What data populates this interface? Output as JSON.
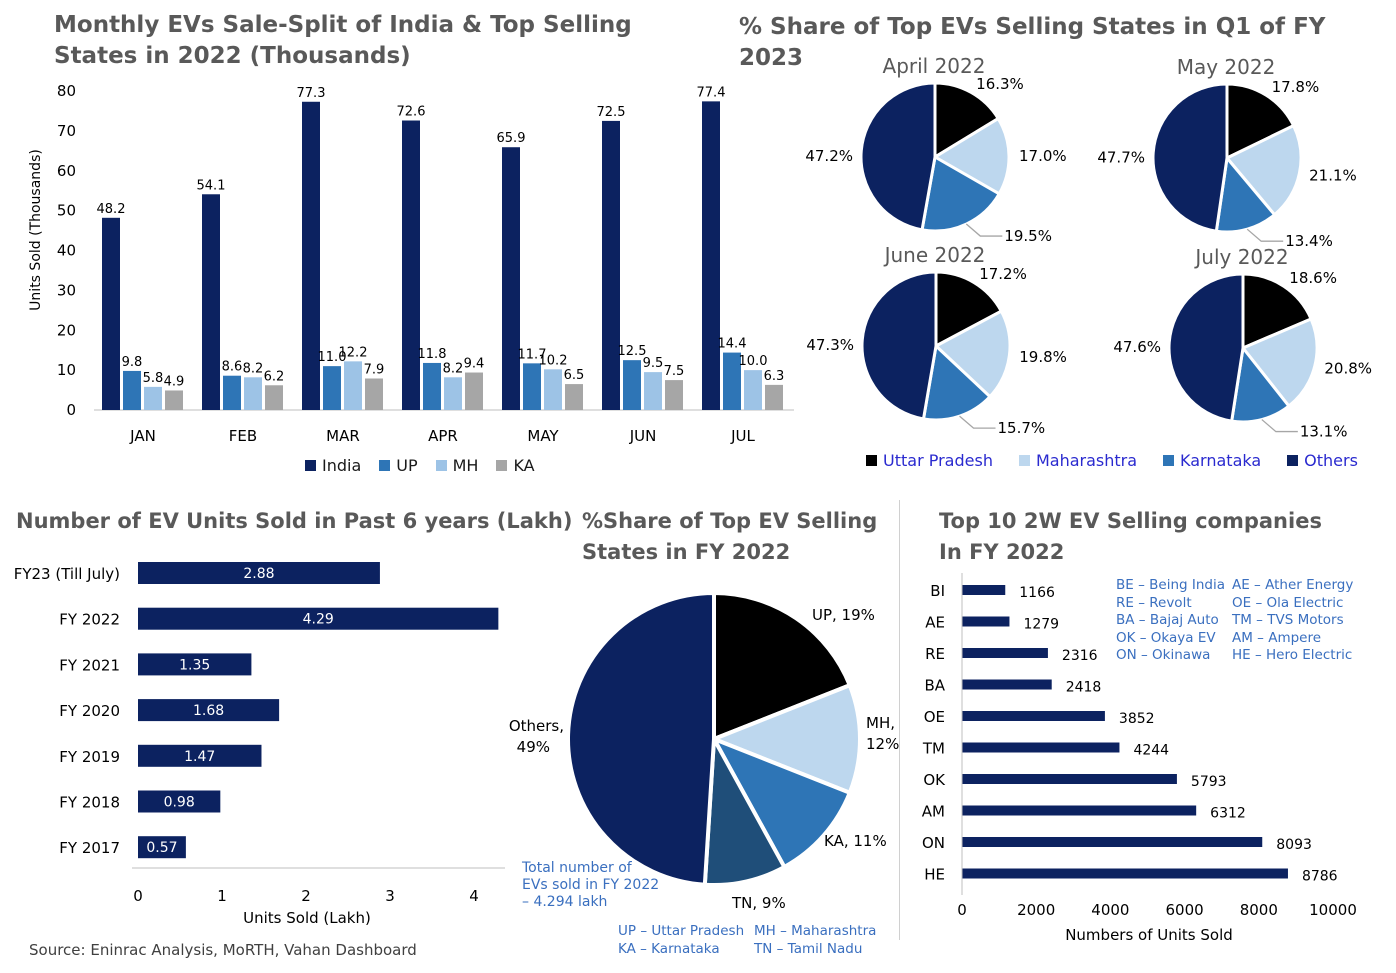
{
  "titles": {
    "monthly": "Monthly EVs Sale-Split of India & Top Selling States in 2022 (Thousands)",
    "share_q1": "% Share of Top EVs Selling States in Q1 of FY 2023",
    "units6y": "Number of EV Units Sold  in Past 6 years (Lakh)",
    "share_fy22": "%Share of Top EV Selling States in FY 2022",
    "top10": "Top 10 2W EV Selling companies In FY 2022"
  },
  "colors": {
    "india": "#0c2260",
    "up": "#2e75b6",
    "mh": "#9dc3e6",
    "ka": "#a6a6a6",
    "uttar_pradesh": "#000000",
    "maharashtra": "#bdd7ee",
    "karnataka": "#2e75b6",
    "others": "#0c2260",
    "tn": "#1f4e79",
    "bar_navy": "#0c2260",
    "accent_text": "#3a6fbf",
    "legend_text": "#2a2acf"
  },
  "source": "Source: Eninrac Analysis, MoRTH, Vahan Dashboard",
  "pie_legend": {
    "uttar_pradesh": "Uttar Pradesh",
    "maharashtra": "Maharashtra",
    "karnataka": "Karnataka",
    "others": "Others"
  },
  "fy22_note": [
    "Total number of",
    "EVs sold in FY 2022",
    "– 4.294 lakh"
  ],
  "fy22_abbr": {
    "col1": [
      "UP – Uttar Pradesh",
      "KA – Karnataka"
    ],
    "col2": [
      "MH – Maharashtra",
      "TN – Tamil Nadu"
    ]
  },
  "company_abbr": {
    "col1": [
      "BE – Being India",
      "RE – Revolt",
      "BA – Bajaj Auto",
      "OK – Okaya EV",
      "ON – Okinawa"
    ],
    "col2": [
      "AE – Ather Energy",
      "OE – Ola Electric",
      "TM – TVS Motors",
      "AM – Ampere",
      "HE – Hero Electric"
    ]
  },
  "chart_data": [
    {
      "id": "monthly",
      "type": "bar",
      "title": "Monthly EVs Sale-Split of India & Top Selling States in 2022 (Thousands)",
      "categories": [
        "JAN",
        "FEB",
        "MAR",
        "APR",
        "MAY",
        "JUN",
        "JUL"
      ],
      "series": [
        {
          "name": "India",
          "values": [
            48.2,
            54.1,
            77.3,
            72.6,
            65.9,
            72.5,
            77.4
          ],
          "labels": [
            "48.2",
            "54.1",
            "77.3",
            "72.6",
            "65.9",
            "72.5",
            "77.4"
          ]
        },
        {
          "name": "UP",
          "values": [
            9.8,
            8.6,
            11.0,
            11.8,
            11.7,
            12.5,
            14.4
          ],
          "labels": [
            "9.8",
            "8.6",
            "11.0",
            "11.8",
            "11.7",
            "12.5",
            "14.4"
          ]
        },
        {
          "name": "MH",
          "values": [
            5.8,
            8.2,
            12.2,
            8.2,
            10.2,
            9.5,
            10.0
          ],
          "labels": [
            "5.8",
            "8.2",
            "12.2",
            "8.2",
            "10.2",
            "9.5",
            "10.0"
          ]
        },
        {
          "name": "KA",
          "values": [
            4.9,
            6.2,
            7.9,
            9.4,
            6.5,
            7.5,
            6.3
          ],
          "labels": [
            "4.9",
            "6.2",
            "7.9",
            "9.4",
            "6.5",
            "7.5",
            "6.3"
          ]
        }
      ],
      "ylabel": "Units Sold (Thousands)",
      "ylim": [
        0,
        80
      ],
      "yticks": [
        "0",
        "10",
        "20",
        "30",
        "40",
        "50",
        "60",
        "70",
        "80"
      ],
      "grid": false,
      "legend": "bottom"
    },
    {
      "id": "q1_pies",
      "type": "pie",
      "title": "% Share of Top EVs Selling States in Q1 of FY 2023",
      "slice_order": [
        "Uttar Pradesh",
        "Maharashtra",
        "Karnataka",
        "Others"
      ],
      "pies": [
        {
          "title": "April 2022",
          "values": [
            16.3,
            17.0,
            19.5,
            47.2
          ],
          "labels": [
            "16.3%",
            "17.0%",
            "19.5%",
            "47.2%"
          ]
        },
        {
          "title": "May 2022",
          "values": [
            17.8,
            21.1,
            13.4,
            47.7
          ],
          "labels": [
            "17.8%",
            "21.1%",
            "13.4%",
            "47.7%"
          ]
        },
        {
          "title": "June 2022",
          "values": [
            17.2,
            19.8,
            15.7,
            47.3
          ],
          "labels": [
            "17.2%",
            "19.8%",
            "15.7%",
            "47.3%"
          ]
        },
        {
          "title": "July 2022",
          "values": [
            18.6,
            20.8,
            13.1,
            47.6
          ],
          "labels": [
            "18.6%",
            "20.8%",
            "13.1%",
            "47.6%"
          ]
        }
      ],
      "legend": "bottom"
    },
    {
      "id": "units6y",
      "type": "bar",
      "orientation": "horizontal",
      "title": "Number of EV Units Sold  in Past 6 years (Lakh)",
      "categories": [
        "FY23 (Till July)",
        "FY 2022",
        "FY 2021",
        "FY 2020",
        "FY 2019",
        "FY 2018",
        "FY 2017"
      ],
      "values": [
        2.88,
        4.29,
        1.35,
        1.68,
        1.47,
        0.98,
        0.57
      ],
      "labels": [
        "2.88",
        "4.29",
        "1.35",
        "1.68",
        "1.47",
        "0.98",
        "0.57"
      ],
      "xlabel": "Units Sold (Lakh)",
      "xlim": [
        0,
        4.3
      ],
      "xticks": [
        "0",
        "1",
        "2",
        "3",
        "4"
      ]
    },
    {
      "id": "fy22_pie",
      "type": "pie",
      "title": "%Share of Top EV Selling States in FY 2022",
      "slices": [
        {
          "name": "UP",
          "value": 19,
          "label1": "UP, 19%",
          "label2": ""
        },
        {
          "name": "MH",
          "value": 12,
          "label1": "MH,",
          "label2": "12%"
        },
        {
          "name": "KA",
          "value": 11,
          "label1": "KA, 11%",
          "label2": ""
        },
        {
          "name": "TN",
          "value": 9,
          "label1": "TN, 9%",
          "label2": ""
        },
        {
          "name": "Others",
          "value": 49,
          "label1": "Others,",
          "label2": "49%"
        }
      ]
    },
    {
      "id": "top10",
      "type": "bar",
      "orientation": "horizontal",
      "title": "Top 10 2W EV Selling companies In FY 2022",
      "categories": [
        "BI",
        "AE",
        "RE",
        "BA",
        "OE",
        "TM",
        "OK",
        "AM",
        "ON",
        "HE"
      ],
      "values": [
        1166,
        1279,
        2316,
        2418,
        3852,
        4244,
        5793,
        6312,
        8093,
        8786
      ],
      "labels": [
        "1166",
        "1279",
        "2316",
        "2418",
        "3852",
        "4244",
        "5793",
        "6312",
        "8093",
        "8786"
      ],
      "xlabel": "Numbers of Units Sold",
      "xlim": [
        0,
        10000
      ],
      "xticks": [
        "0",
        "2000",
        "4000",
        "6000",
        "8000",
        "10000"
      ]
    }
  ]
}
